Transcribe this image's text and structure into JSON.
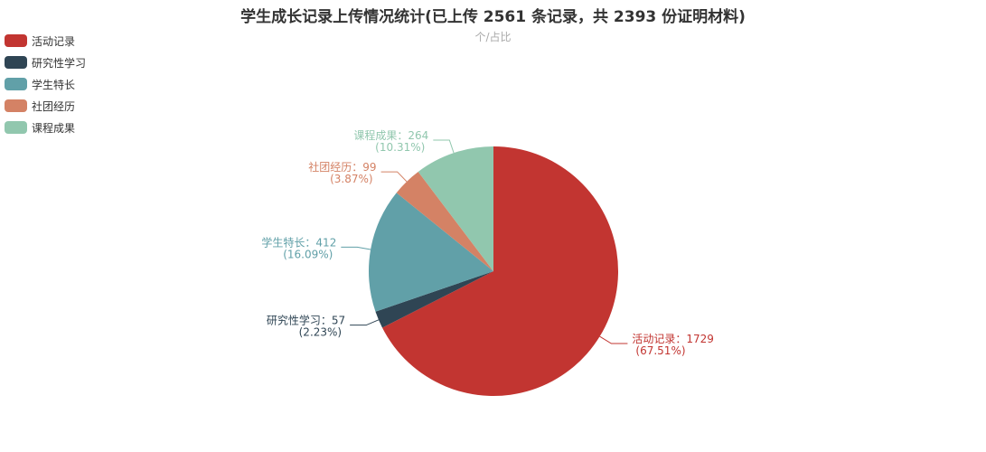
{
  "chart_data": {
    "type": "pie",
    "title": "学生成长记录上传情况统计(已上传 2561 条记录，共 2393 份证明材料)",
    "subtitle": "个/占比",
    "legend_position": "top-left",
    "slices": [
      {
        "name": "活动记录",
        "value": 1729,
        "percent": "67.51%",
        "color": "#c23531"
      },
      {
        "name": "研究性学习",
        "value": 57,
        "percent": "2.23%",
        "color": "#2f4554"
      },
      {
        "name": "学生特长",
        "value": 412,
        "percent": "16.09%",
        "color": "#61a0a8"
      },
      {
        "name": "社团经历",
        "value": 99,
        "percent": "3.87%",
        "color": "#d48265"
      },
      {
        "name": "课程成果",
        "value": 264,
        "percent": "10.31%",
        "color": "#91c7ae"
      }
    ]
  }
}
